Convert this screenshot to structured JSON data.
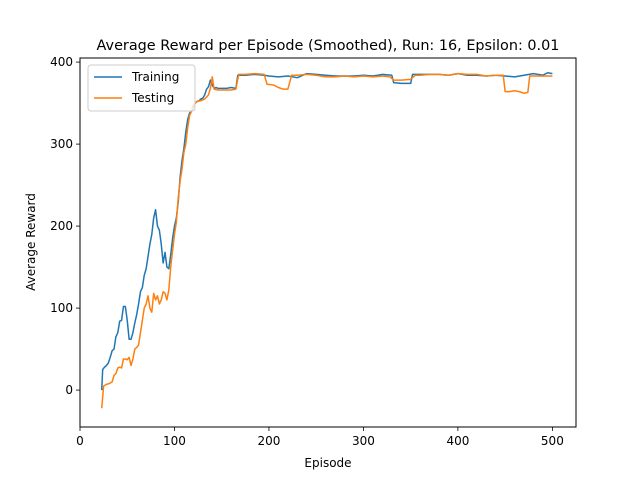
{
  "chart_data": {
    "type": "line",
    "title": "Average Reward per Episode (Smoothed), Run: 16, Epsilon: 0.01",
    "xlabel": "Episode",
    "ylabel": "Average Reward",
    "xlim": [
      0,
      525
    ],
    "ylim": [
      -45,
      405
    ],
    "xticks": [
      0,
      100,
      200,
      300,
      400,
      500
    ],
    "yticks": [
      0,
      100,
      200,
      300,
      400
    ],
    "grid": false,
    "legend_position": "upper-left",
    "series": [
      {
        "name": "Training",
        "color": "#1f77b4",
        "points": [
          [
            23,
            0
          ],
          [
            24,
            25
          ],
          [
            26,
            28
          ],
          [
            28,
            30
          ],
          [
            30,
            33
          ],
          [
            32,
            40
          ],
          [
            34,
            48
          ],
          [
            36,
            50
          ],
          [
            38,
            65
          ],
          [
            40,
            70
          ],
          [
            42,
            84
          ],
          [
            44,
            85
          ],
          [
            46,
            102
          ],
          [
            48,
            102
          ],
          [
            50,
            85
          ],
          [
            52,
            62
          ],
          [
            54,
            62
          ],
          [
            56,
            70
          ],
          [
            58,
            82
          ],
          [
            60,
            92
          ],
          [
            62,
            105
          ],
          [
            64,
            120
          ],
          [
            66,
            125
          ],
          [
            68,
            140
          ],
          [
            70,
            148
          ],
          [
            72,
            163
          ],
          [
            74,
            178
          ],
          [
            76,
            190
          ],
          [
            78,
            210
          ],
          [
            80,
            220
          ],
          [
            82,
            200
          ],
          [
            84,
            195
          ],
          [
            86,
            178
          ],
          [
            88,
            155
          ],
          [
            90,
            168
          ],
          [
            92,
            150
          ],
          [
            94,
            148
          ],
          [
            96,
            165
          ],
          [
            98,
            185
          ],
          [
            100,
            200
          ],
          [
            102,
            210
          ],
          [
            104,
            230
          ],
          [
            106,
            260
          ],
          [
            108,
            280
          ],
          [
            110,
            295
          ],
          [
            112,
            315
          ],
          [
            114,
            330
          ],
          [
            116,
            338
          ],
          [
            118,
            340
          ],
          [
            120,
            345
          ],
          [
            122,
            350
          ],
          [
            124,
            352
          ],
          [
            126,
            353
          ],
          [
            128,
            355
          ],
          [
            130,
            356
          ],
          [
            132,
            360
          ],
          [
            134,
            367
          ],
          [
            136,
            370
          ],
          [
            138,
            378
          ],
          [
            140,
            372
          ],
          [
            142,
            368
          ],
          [
            144,
            369
          ],
          [
            146,
            368
          ],
          [
            150,
            368
          ],
          [
            155,
            368
          ],
          [
            160,
            369
          ],
          [
            165,
            368
          ],
          [
            167,
            384
          ],
          [
            175,
            384
          ],
          [
            185,
            385
          ],
          [
            195,
            384
          ],
          [
            200,
            383
          ],
          [
            210,
            382
          ],
          [
            220,
            383
          ],
          [
            230,
            381
          ],
          [
            240,
            386
          ],
          [
            250,
            385
          ],
          [
            260,
            384
          ],
          [
            270,
            383
          ],
          [
            280,
            383
          ],
          [
            290,
            383
          ],
          [
            300,
            384
          ],
          [
            310,
            383
          ],
          [
            320,
            385
          ],
          [
            330,
            384
          ],
          [
            332,
            375
          ],
          [
            340,
            374
          ],
          [
            350,
            374
          ],
          [
            352,
            385
          ],
          [
            360,
            385
          ],
          [
            370,
            385
          ],
          [
            380,
            385
          ],
          [
            390,
            384
          ],
          [
            400,
            386
          ],
          [
            410,
            384
          ],
          [
            420,
            384
          ],
          [
            430,
            383
          ],
          [
            440,
            384
          ],
          [
            450,
            383
          ],
          [
            460,
            382
          ],
          [
            470,
            384
          ],
          [
            480,
            386
          ],
          [
            490,
            384
          ],
          [
            495,
            387
          ],
          [
            500,
            386
          ]
        ]
      },
      {
        "name": "Testing",
        "color": "#ff7f0e",
        "points": [
          [
            23,
            -22
          ],
          [
            25,
            5
          ],
          [
            28,
            7
          ],
          [
            31,
            8
          ],
          [
            34,
            10
          ],
          [
            36,
            18
          ],
          [
            38,
            20
          ],
          [
            40,
            27
          ],
          [
            42,
            28
          ],
          [
            44,
            27
          ],
          [
            46,
            38
          ],
          [
            48,
            38
          ],
          [
            50,
            37
          ],
          [
            52,
            40
          ],
          [
            54,
            30
          ],
          [
            56,
            38
          ],
          [
            58,
            50
          ],
          [
            60,
            52
          ],
          [
            62,
            55
          ],
          [
            64,
            70
          ],
          [
            66,
            85
          ],
          [
            68,
            100
          ],
          [
            70,
            105
          ],
          [
            72,
            115
          ],
          [
            74,
            100
          ],
          [
            76,
            95
          ],
          [
            78,
            118
          ],
          [
            80,
            110
          ],
          [
            82,
            115
          ],
          [
            84,
            105
          ],
          [
            86,
            110
          ],
          [
            88,
            120
          ],
          [
            90,
            118
          ],
          [
            92,
            110
          ],
          [
            94,
            122
          ],
          [
            96,
            150
          ],
          [
            98,
            170
          ],
          [
            100,
            190
          ],
          [
            102,
            205
          ],
          [
            104,
            235
          ],
          [
            106,
            255
          ],
          [
            108,
            270
          ],
          [
            110,
            290
          ],
          [
            112,
            300
          ],
          [
            114,
            320
          ],
          [
            116,
            335
          ],
          [
            118,
            340
          ],
          [
            120,
            348
          ],
          [
            124,
            352
          ],
          [
            128,
            353
          ],
          [
            132,
            355
          ],
          [
            136,
            360
          ],
          [
            138,
            368
          ],
          [
            140,
            382
          ],
          [
            142,
            367
          ],
          [
            146,
            366
          ],
          [
            150,
            366
          ],
          [
            155,
            366
          ],
          [
            160,
            366
          ],
          [
            165,
            367
          ],
          [
            168,
            385
          ],
          [
            175,
            385
          ],
          [
            185,
            386
          ],
          [
            195,
            385
          ],
          [
            198,
            373
          ],
          [
            205,
            372
          ],
          [
            210,
            369
          ],
          [
            215,
            367
          ],
          [
            220,
            367
          ],
          [
            224,
            384
          ],
          [
            230,
            384
          ],
          [
            240,
            385
          ],
          [
            250,
            384
          ],
          [
            260,
            382
          ],
          [
            270,
            382
          ],
          [
            280,
            383
          ],
          [
            290,
            382
          ],
          [
            300,
            383
          ],
          [
            310,
            382
          ],
          [
            320,
            383
          ],
          [
            328,
            382
          ],
          [
            332,
            378
          ],
          [
            340,
            378
          ],
          [
            350,
            379
          ],
          [
            355,
            384
          ],
          [
            360,
            384
          ],
          [
            370,
            385
          ],
          [
            380,
            385
          ],
          [
            390,
            384
          ],
          [
            400,
            386
          ],
          [
            410,
            385
          ],
          [
            420,
            385
          ],
          [
            430,
            383
          ],
          [
            440,
            384
          ],
          [
            448,
            384
          ],
          [
            450,
            364
          ],
          [
            455,
            364
          ],
          [
            460,
            365
          ],
          [
            465,
            364
          ],
          [
            470,
            362
          ],
          [
            474,
            363
          ],
          [
            476,
            383
          ],
          [
            480,
            383
          ],
          [
            490,
            383
          ],
          [
            500,
            383
          ]
        ]
      }
    ]
  }
}
